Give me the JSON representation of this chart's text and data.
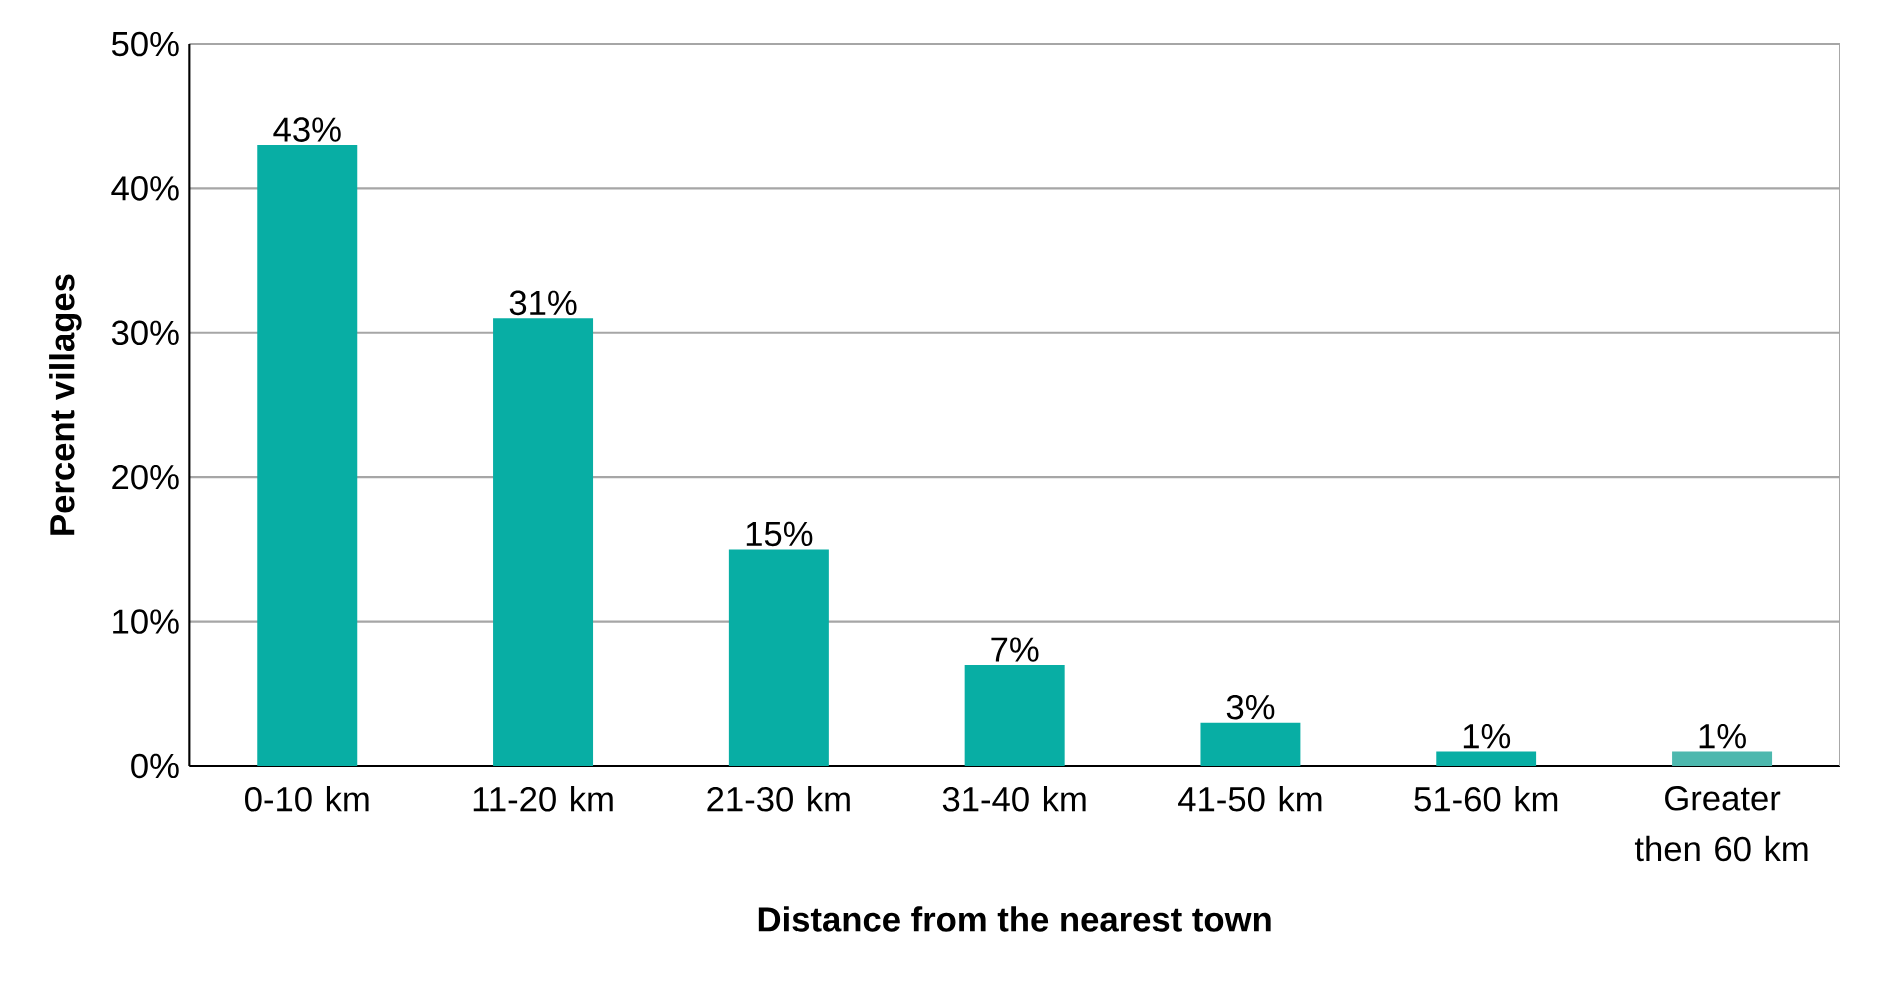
{
  "chart_data": {
    "type": "bar",
    "xlabel": "Distance from the nearest town",
    "ylabel": "Percent villages",
    "categories": [
      "0-10 km",
      "11-20 km",
      "21-30 km",
      "31-40 km",
      "41-50 km",
      "51-60 km",
      "Greater then 60 km"
    ],
    "values": [
      43,
      31,
      15,
      7,
      3,
      1,
      1
    ],
    "value_labels": [
      "43%",
      "31%",
      "15%",
      "7%",
      "3%",
      "1%",
      "1%"
    ],
    "colors": [
      "#08aea4",
      "#08aea4",
      "#08aea4",
      "#08aea4",
      "#08aea4",
      "#08aea4",
      "#4db8ae"
    ],
    "ylim": [
      0,
      50
    ],
    "yticks": [
      {
        "value": 0,
        "label": "0%"
      },
      {
        "value": 10,
        "label": "10%"
      },
      {
        "value": 20,
        "label": "20%"
      },
      {
        "value": 30,
        "label": "30%"
      },
      {
        "value": 40,
        "label": "40%"
      },
      {
        "value": 50,
        "label": "50%"
      }
    ],
    "grid": "y"
  }
}
